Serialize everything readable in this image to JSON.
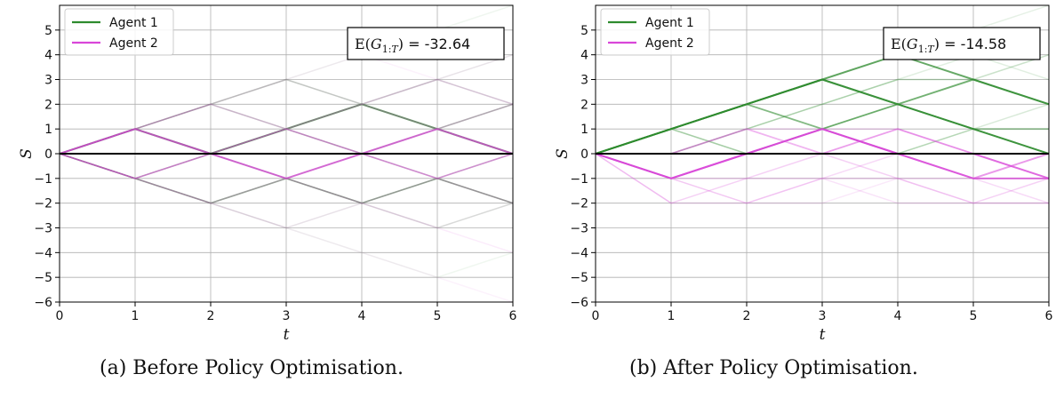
{
  "colors": {
    "agent1": "#2e8b2e",
    "agent2": "#d946d9",
    "zero_line": "#000000",
    "grid": "#b0b0b0"
  },
  "chart_data": [
    {
      "type": "line",
      "xlabel": "t",
      "ylabel": "S",
      "xlim": [
        0,
        6
      ],
      "ylim": [
        -6,
        6
      ],
      "xticks": [
        "0",
        "1",
        "2",
        "3",
        "4",
        "5",
        "6"
      ],
      "yticks": [
        "−6",
        "−5",
        "−4",
        "−3",
        "−2",
        "−1",
        "0",
        "1",
        "2",
        "3",
        "4",
        "5"
      ],
      "grid": true,
      "legend": {
        "placement": "top-left",
        "entries": [
          "Agent 1",
          "Agent 2"
        ]
      },
      "annotation": {
        "label": "E(G1:T) = ",
        "value": "-32.64",
        "placement": "top-right"
      },
      "zero_line": true,
      "series": [
        {
          "name": "Agent 1",
          "color": "#2e8b2e",
          "paths": [
            {
              "y": [
                0,
                1,
                0,
                1,
                2,
                1,
                0
              ],
              "opacity": 0.75,
              "width": 2.0
            },
            {
              "y": [
                0,
                -1,
                -2,
                -1,
                -2,
                -1,
                -2
              ],
              "opacity": 0.5,
              "width": 1.6
            },
            {
              "y": [
                0,
                1,
                2,
                3,
                2,
                3,
                2
              ],
              "opacity": 0.2,
              "width": 1.5
            },
            {
              "y": [
                0,
                1,
                0,
                -1,
                0,
                1,
                2
              ],
              "opacity": 0.2,
              "width": 1.5
            },
            {
              "y": [
                0,
                -1,
                0,
                1,
                0,
                -1,
                0
              ],
              "opacity": 0.2,
              "width": 1.5
            },
            {
              "y": [
                0,
                1,
                2,
                1,
                2,
                1,
                2
              ],
              "opacity": 0.18,
              "width": 1.5
            },
            {
              "y": [
                0,
                -1,
                0,
                -1,
                -2,
                -3,
                -2
              ],
              "opacity": 0.18,
              "width": 1.5
            },
            {
              "y": [
                0,
                1,
                0,
                1,
                0,
                1,
                0
              ],
              "opacity": 0.18,
              "width": 1.5
            },
            {
              "y": [
                0,
                1,
                2,
                3,
                4,
                5,
                6
              ],
              "opacity": 0.08,
              "width": 1.5
            },
            {
              "y": [
                0,
                -1,
                -2,
                -3,
                -4,
                -5,
                -4
              ],
              "opacity": 0.07,
              "width": 1.5
            },
            {
              "y": [
                0,
                -1,
                -2,
                -1,
                0,
                1,
                0
              ],
              "opacity": 0.15,
              "width": 1.5
            },
            {
              "y": [
                0,
                1,
                0,
                -1,
                -2,
                -1,
                -2
              ],
              "opacity": 0.14,
              "width": 1.5
            },
            {
              "y": [
                0,
                -1,
                0,
                1,
                2,
                3,
                4
              ],
              "opacity": 0.1,
              "width": 1.5
            },
            {
              "y": [
                0,
                1,
                2,
                1,
                0,
                -1,
                -2
              ],
              "opacity": 0.12,
              "width": 1.5
            },
            {
              "y": [
                0,
                1,
                2,
                3,
                2,
                1,
                2
              ],
              "opacity": 0.12,
              "width": 1.5
            },
            {
              "y": [
                0,
                -1,
                -2,
                -3,
                -2,
                -1,
                0
              ],
              "opacity": 0.1,
              "width": 1.5
            }
          ]
        },
        {
          "name": "Agent 2",
          "color": "#d946d9",
          "paths": [
            {
              "y": [
                0,
                1,
                0,
                -1,
                0,
                1,
                0
              ],
              "opacity": 0.7,
              "width": 2.0
            },
            {
              "y": [
                0,
                -1,
                0,
                1,
                0,
                -1,
                0
              ],
              "opacity": 0.45,
              "width": 1.6
            },
            {
              "y": [
                0,
                -1,
                -2,
                -1,
                0,
                -1,
                -2
              ],
              "opacity": 0.18,
              "width": 1.5
            },
            {
              "y": [
                0,
                1,
                2,
                1,
                2,
                3,
                2
              ],
              "opacity": 0.16,
              "width": 1.5
            },
            {
              "y": [
                0,
                -1,
                0,
                -1,
                -2,
                -1,
                -2
              ],
              "opacity": 0.16,
              "width": 1.5
            },
            {
              "y": [
                0,
                1,
                2,
                3,
                2,
                1,
                0
              ],
              "opacity": 0.14,
              "width": 1.5
            },
            {
              "y": [
                0,
                -1,
                -2,
                -3,
                -2,
                -3,
                -4
              ],
              "opacity": 0.1,
              "width": 1.5
            },
            {
              "y": [
                0,
                1,
                0,
                1,
                2,
                1,
                2
              ],
              "opacity": 0.16,
              "width": 1.5
            },
            {
              "y": [
                0,
                -1,
                0,
                1,
                2,
                3,
                4
              ],
              "opacity": 0.09,
              "width": 1.5
            },
            {
              "y": [
                0,
                1,
                2,
                1,
                0,
                1,
                2
              ],
              "opacity": 0.13,
              "width": 1.5
            },
            {
              "y": [
                0,
                -1,
                -2,
                -3,
                -4,
                -5,
                -6
              ],
              "opacity": 0.07,
              "width": 1.5
            },
            {
              "y": [
                0,
                1,
                0,
                -1,
                -2,
                -3,
                -2
              ],
              "opacity": 0.1,
              "width": 1.5
            },
            {
              "y": [
                0,
                -1,
                -2,
                -1,
                -2,
                -1,
                0
              ],
              "opacity": 0.12,
              "width": 1.5
            },
            {
              "y": [
                0,
                1,
                2,
                3,
                4,
                3,
                2
              ],
              "opacity": 0.07,
              "width": 1.5
            }
          ]
        }
      ]
    },
    {
      "type": "line",
      "xlabel": "t",
      "ylabel": "S",
      "xlim": [
        0,
        6
      ],
      "ylim": [
        -6,
        6
      ],
      "xticks": [
        "0",
        "1",
        "2",
        "3",
        "4",
        "5",
        "6"
      ],
      "yticks": [
        "−6",
        "−5",
        "−4",
        "−3",
        "−2",
        "−1",
        "0",
        "1",
        "2",
        "3",
        "4",
        "5"
      ],
      "grid": true,
      "legend": {
        "placement": "top-left",
        "entries": [
          "Agent 1",
          "Agent 2"
        ]
      },
      "annotation": {
        "label": "E(G1:T) = ",
        "value": "-14.58",
        "placement": "top-right"
      },
      "zero_line": true,
      "series": [
        {
          "name": "Agent 1",
          "color": "#2e8b2e",
          "paths": [
            {
              "y": [
                0,
                1,
                2,
                3,
                2,
                1,
                0
              ],
              "opacity": 0.75,
              "width": 2.0
            },
            {
              "y": [
                0,
                1,
                2,
                3,
                4,
                3,
                2
              ],
              "opacity": 0.65,
              "width": 2.0
            },
            {
              "y": [
                0,
                1,
                2,
                3,
                2,
                3,
                2
              ],
              "opacity": 0.55,
              "width": 2.0
            },
            {
              "y": [
                0,
                1,
                2,
                1,
                2,
                1,
                0
              ],
              "opacity": 0.5,
              "width": 1.8
            },
            {
              "y": [
                0,
                1,
                2,
                3,
                4,
                5,
                6
              ],
              "opacity": 0.12,
              "width": 1.5
            },
            {
              "y": [
                0,
                1,
                2,
                3,
                4,
                3,
                4
              ],
              "opacity": 0.25,
              "width": 1.5
            },
            {
              "y": [
                0,
                1,
                0,
                1,
                2,
                3,
                2
              ],
              "opacity": 0.28,
              "width": 1.5
            },
            {
              "y": [
                0,
                0,
                1,
                2,
                3,
                3,
                2
              ],
              "opacity": 0.3,
              "width": 1.5
            },
            {
              "y": [
                0,
                1,
                2,
                1,
                0,
                1,
                2
              ],
              "opacity": 0.18,
              "width": 1.5
            },
            {
              "y": [
                0,
                1,
                0,
                1,
                0,
                1,
                0
              ],
              "opacity": 0.2,
              "width": 1.5
            },
            {
              "y": [
                0,
                1,
                2,
                3,
                2,
                1,
                1
              ],
              "opacity": 0.45,
              "width": 1.8
            },
            {
              "y": [
                0,
                0,
                1,
                2,
                3,
                4,
                3
              ],
              "opacity": 0.14,
              "width": 1.5
            },
            {
              "y": [
                0,
                0,
                0,
                1,
                2,
                1,
                0
              ],
              "opacity": 0.2,
              "width": 1.5
            }
          ]
        },
        {
          "name": "Agent 2",
          "color": "#d946d9",
          "paths": [
            {
              "y": [
                0,
                -1,
                0,
                1,
                0,
                -1,
                -1
              ],
              "opacity": 0.7,
              "width": 2.0
            },
            {
              "y": [
                0,
                -1,
                0,
                1,
                0,
                0,
                -1
              ],
              "opacity": 0.6,
              "width": 2.0
            },
            {
              "y": [
                0,
                -1,
                0,
                1,
                0,
                -1,
                0
              ],
              "opacity": 0.55,
              "width": 2.0
            },
            {
              "y": [
                0,
                -2,
                -1,
                0,
                -1,
                -2,
                -1
              ],
              "opacity": 0.25,
              "width": 1.5
            },
            {
              "y": [
                0,
                0,
                1,
                0,
                1,
                0,
                -1
              ],
              "opacity": 0.4,
              "width": 1.8
            },
            {
              "y": [
                0,
                -1,
                -1,
                -1,
                -1,
                -1,
                -1
              ],
              "opacity": 0.2,
              "width": 1.5
            },
            {
              "y": [
                0,
                -2,
                -2,
                -1,
                -2,
                -2,
                -2
              ],
              "opacity": 0.15,
              "width": 1.5
            },
            {
              "y": [
                0,
                -1,
                -2,
                -1,
                0,
                -1,
                -2
              ],
              "opacity": 0.2,
              "width": 1.5
            },
            {
              "y": [
                0,
                0,
                1,
                1,
                1,
                0,
                -1
              ],
              "opacity": 0.18,
              "width": 1.5
            },
            {
              "y": [
                0,
                -1,
                0,
                0,
                1,
                0,
                0
              ],
              "opacity": 0.2,
              "width": 1.5
            },
            {
              "y": [
                0,
                -1,
                -2,
                -2,
                -1,
                -2,
                -2
              ],
              "opacity": 0.12,
              "width": 1.5
            }
          ]
        }
      ]
    }
  ],
  "captions": [
    "(a) Before Policy Optimisation.",
    "(b) After Policy Optimisation."
  ]
}
